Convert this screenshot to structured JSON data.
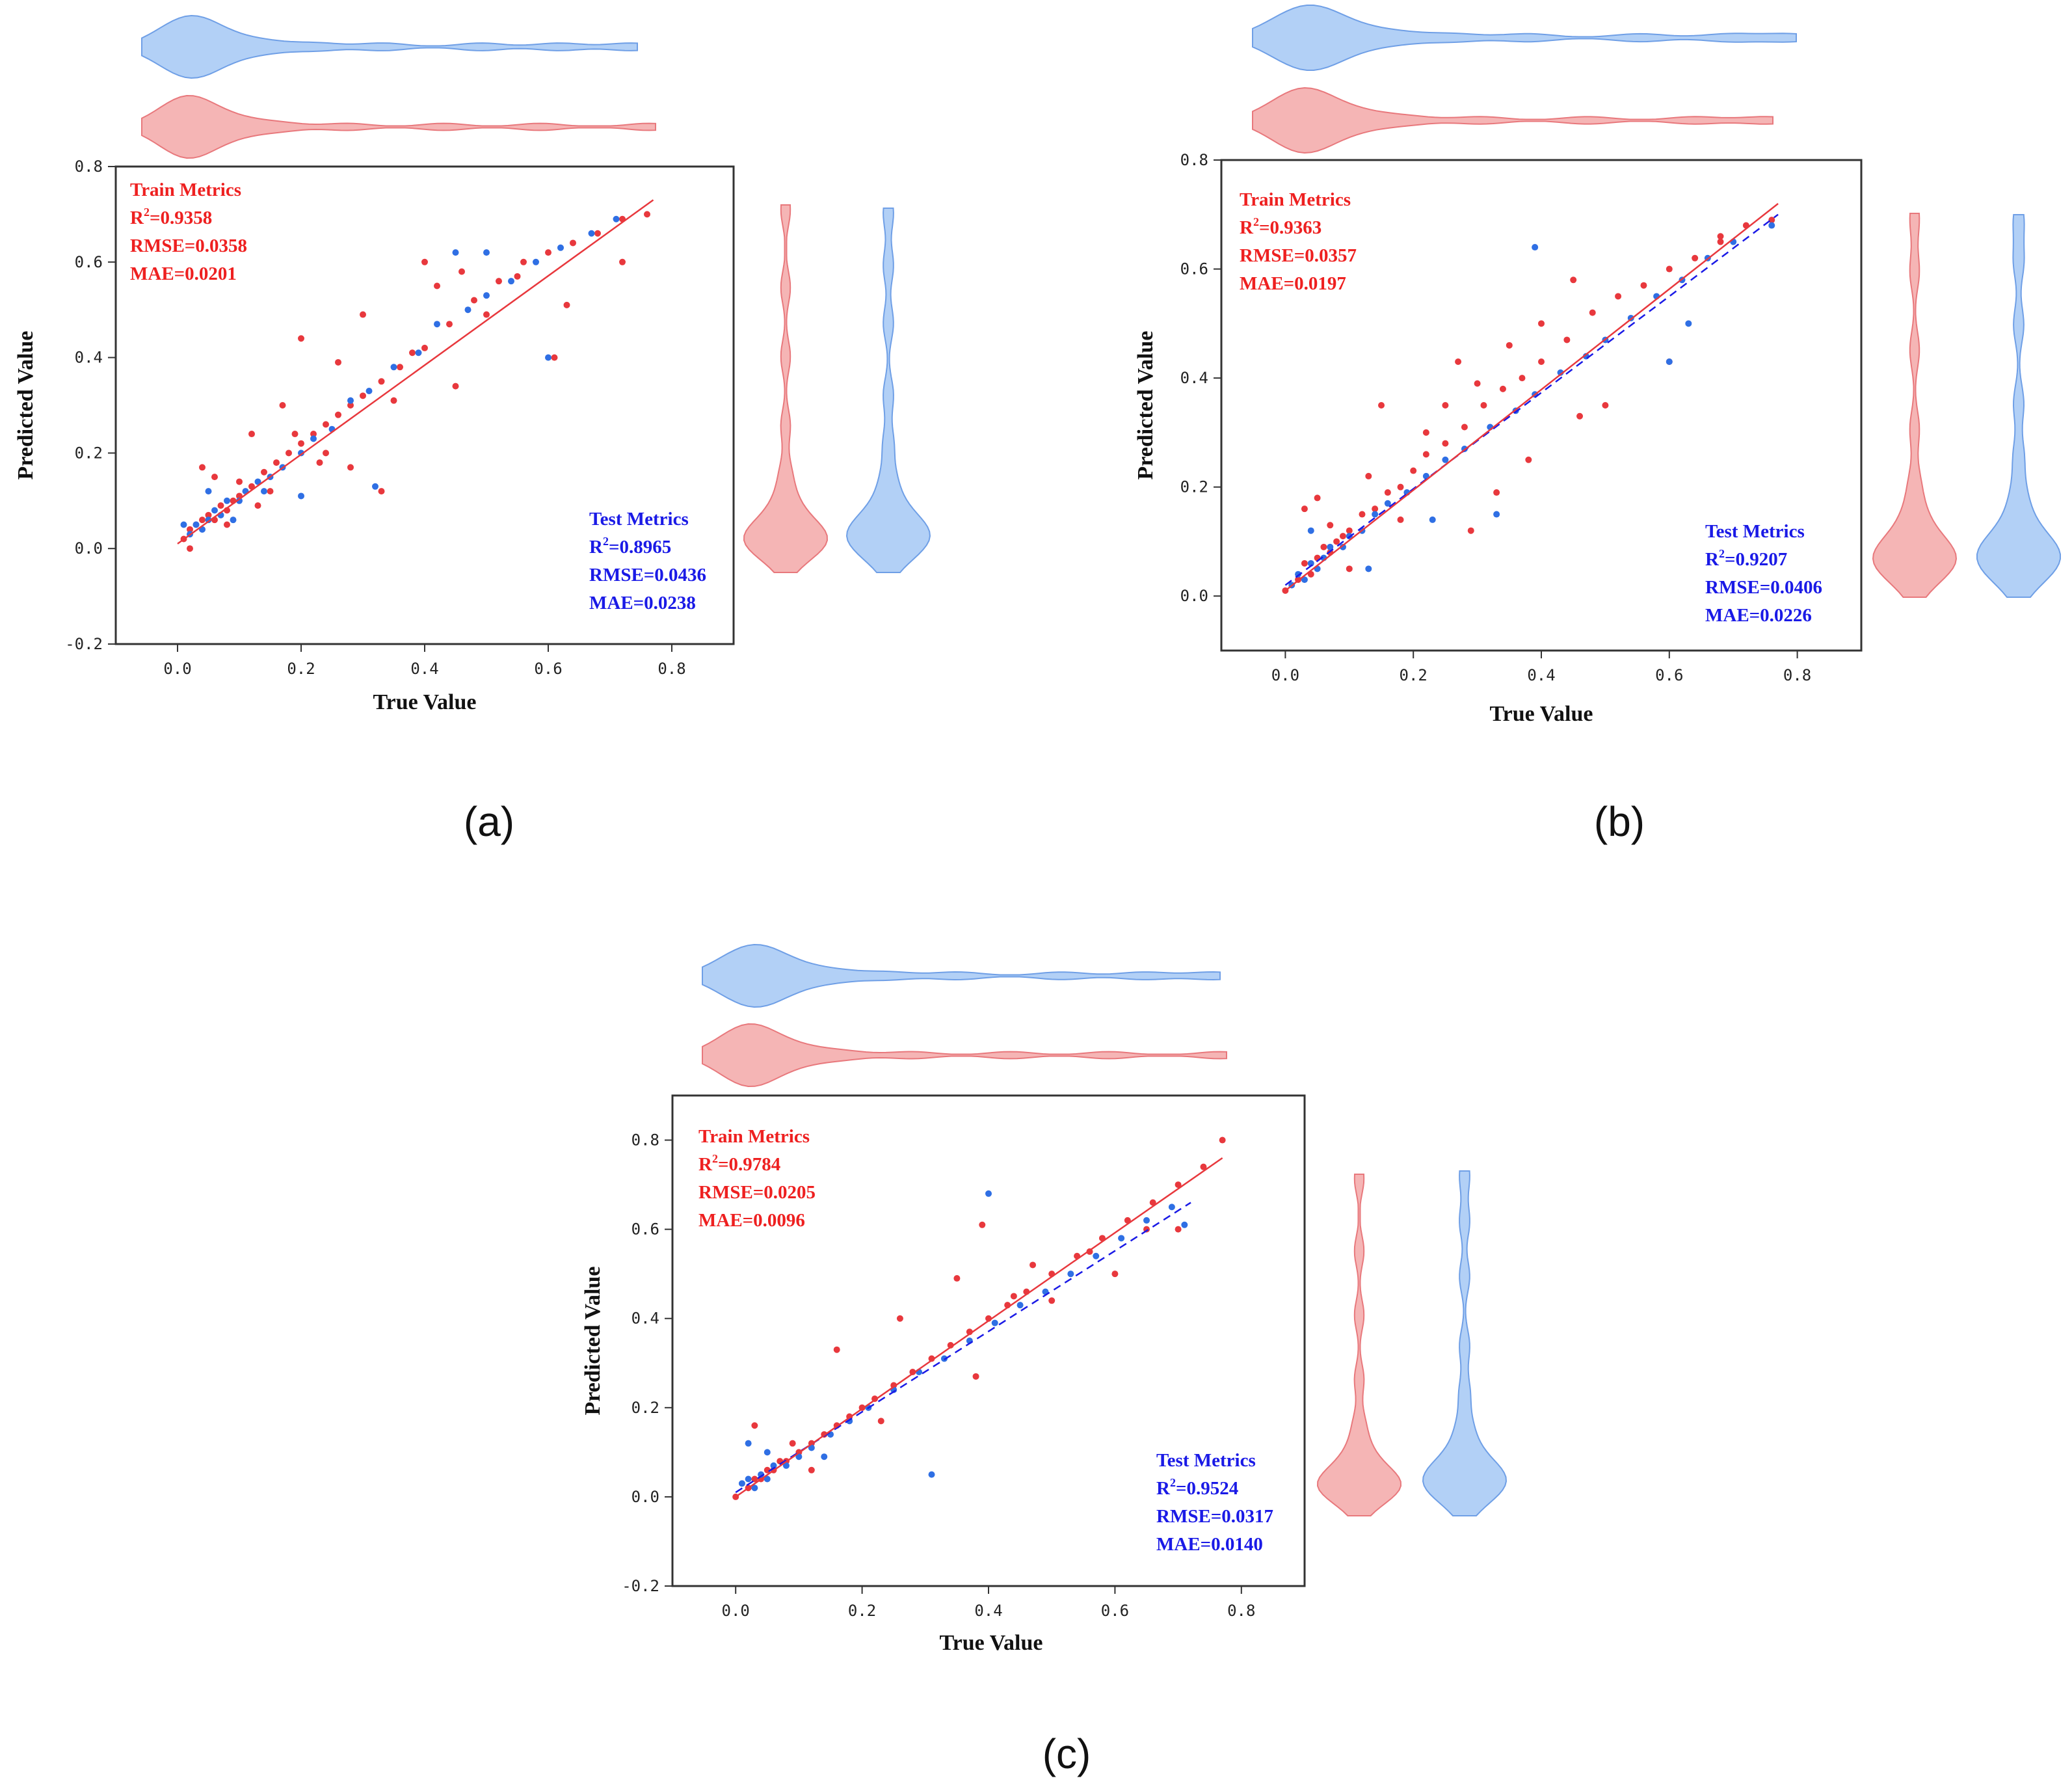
{
  "colors": {
    "train": "#e8383d",
    "test": "#2f6fe4",
    "train_violin_fill": "#f5b5b5",
    "train_violin_stroke": "#e8787c",
    "test_violin_fill": "#b2d0f6",
    "test_violin_stroke": "#6f9fe6",
    "train_text": "#ee2020",
    "test_text": "#1a1ae6"
  },
  "chart_data": [
    {
      "panel": "(a)",
      "type": "scatter",
      "xlabel": "True Value",
      "ylabel": "Predicted Value",
      "xlim": [
        -0.1,
        0.9
      ],
      "ylim": [
        -0.2,
        0.8
      ],
      "xticks": [
        "0.0",
        "0.2",
        "0.4",
        "0.6",
        "0.8"
      ],
      "yticks": [
        "-0.2",
        "0.0",
        "0.2",
        "0.4",
        "0.6",
        "0.8"
      ],
      "fit_line": {
        "x": [
          0.0,
          0.77
        ],
        "y": [
          0.01,
          0.73
        ]
      },
      "test_fit_line": null,
      "train_metrics": {
        "title": "Train Metrics",
        "r2": "=0.9358",
        "rmse": "RMSE=0.0358",
        "mae": "MAE=0.0201"
      },
      "test_metrics": {
        "title": "Test Metrics",
        "r2": "=0.8965",
        "rmse": "RMSE=0.0436",
        "mae": "MAE=0.0238"
      },
      "train_points": [
        [
          0.01,
          0.02
        ],
        [
          0.02,
          0.04
        ],
        [
          0.03,
          0.05
        ],
        [
          0.04,
          0.06
        ],
        [
          0.05,
          0.07
        ],
        [
          0.06,
          0.06
        ],
        [
          0.07,
          0.09
        ],
        [
          0.08,
          0.08
        ],
        [
          0.09,
          0.1
        ],
        [
          0.1,
          0.11
        ],
        [
          0.12,
          0.13
        ],
        [
          0.14,
          0.16
        ],
        [
          0.16,
          0.18
        ],
        [
          0.18,
          0.2
        ],
        [
          0.2,
          0.22
        ],
        [
          0.22,
          0.24
        ],
        [
          0.24,
          0.26
        ],
        [
          0.26,
          0.28
        ],
        [
          0.28,
          0.3
        ],
        [
          0.3,
          0.32
        ],
        [
          0.33,
          0.35
        ],
        [
          0.36,
          0.38
        ],
        [
          0.4,
          0.42
        ],
        [
          0.44,
          0.47
        ],
        [
          0.48,
          0.52
        ],
        [
          0.52,
          0.56
        ],
        [
          0.56,
          0.6
        ],
        [
          0.6,
          0.62
        ],
        [
          0.64,
          0.64
        ],
        [
          0.68,
          0.66
        ],
        [
          0.72,
          0.69
        ],
        [
          0.76,
          0.7
        ],
        [
          0.72,
          0.6
        ],
        [
          0.61,
          0.4
        ],
        [
          0.45,
          0.34
        ],
        [
          0.5,
          0.49
        ],
        [
          0.4,
          0.6
        ],
        [
          0.3,
          0.49
        ],
        [
          0.26,
          0.39
        ],
        [
          0.2,
          0.44
        ],
        [
          0.17,
          0.3
        ],
        [
          0.28,
          0.17
        ],
        [
          0.33,
          0.12
        ],
        [
          0.12,
          0.24
        ],
        [
          0.15,
          0.12
        ],
        [
          0.04,
          0.17
        ],
        [
          0.06,
          0.15
        ],
        [
          0.02,
          0.0
        ],
        [
          0.08,
          0.05
        ],
        [
          0.1,
          0.14
        ],
        [
          0.13,
          0.09
        ],
        [
          0.23,
          0.18
        ],
        [
          0.35,
          0.31
        ],
        [
          0.42,
          0.55
        ],
        [
          0.55,
          0.57
        ],
        [
          0.46,
          0.58
        ],
        [
          0.63,
          0.51
        ],
        [
          0.38,
          0.41
        ],
        [
          0.24,
          0.2
        ],
        [
          0.19,
          0.24
        ]
      ],
      "test_points": [
        [
          0.02,
          0.03
        ],
        [
          0.03,
          0.05
        ],
        [
          0.04,
          0.04
        ],
        [
          0.05,
          0.06
        ],
        [
          0.06,
          0.08
        ],
        [
          0.07,
          0.07
        ],
        [
          0.08,
          0.1
        ],
        [
          0.1,
          0.1
        ],
        [
          0.11,
          0.12
        ],
        [
          0.13,
          0.14
        ],
        [
          0.15,
          0.15
        ],
        [
          0.17,
          0.17
        ],
        [
          0.2,
          0.2
        ],
        [
          0.22,
          0.23
        ],
        [
          0.25,
          0.25
        ],
        [
          0.28,
          0.31
        ],
        [
          0.31,
          0.33
        ],
        [
          0.35,
          0.38
        ],
        [
          0.39,
          0.41
        ],
        [
          0.42,
          0.47
        ],
        [
          0.47,
          0.5
        ],
        [
          0.5,
          0.53
        ],
        [
          0.54,
          0.56
        ],
        [
          0.58,
          0.6
        ],
        [
          0.62,
          0.63
        ],
        [
          0.67,
          0.66
        ],
        [
          0.71,
          0.69
        ],
        [
          0.45,
          0.62
        ],
        [
          0.5,
          0.62
        ],
        [
          0.6,
          0.4
        ],
        [
          0.2,
          0.11
        ],
        [
          0.32,
          0.13
        ],
        [
          0.05,
          0.12
        ],
        [
          0.01,
          0.05
        ],
        [
          0.09,
          0.06
        ],
        [
          0.14,
          0.12
        ]
      ],
      "train_violin_values": [
        0.0,
        0.02,
        0.03,
        0.04,
        0.05,
        0.05,
        0.06,
        0.06,
        0.07,
        0.08,
        0.1,
        0.12,
        0.15,
        0.2,
        0.3,
        0.45,
        0.6,
        0.77
      ],
      "test_violin_values": [
        0.0,
        0.02,
        0.03,
        0.04,
        0.05,
        0.06,
        0.06,
        0.07,
        0.08,
        0.09,
        0.11,
        0.14,
        0.18,
        0.25,
        0.35,
        0.5,
        0.62,
        0.73
      ]
    },
    {
      "panel": "(b)",
      "type": "scatter",
      "xlabel": "True Value",
      "ylabel": "Predicted Value",
      "xlim": [
        -0.1,
        0.9
      ],
      "ylim": [
        -0.1,
        0.8
      ],
      "xticks": [
        "0.0",
        "0.2",
        "0.4",
        "0.6",
        "0.8"
      ],
      "yticks": [
        "0.0",
        "0.2",
        "0.4",
        "0.6",
        "0.8"
      ],
      "fit_line": {
        "x": [
          0.0,
          0.77
        ],
        "y": [
          0.01,
          0.72
        ]
      },
      "test_fit_line": {
        "x": [
          0.0,
          0.77
        ],
        "y": [
          0.02,
          0.7
        ]
      },
      "train_metrics": {
        "title": "Train Metrics",
        "r2": "=0.9363",
        "rmse": "RMSE=0.0357",
        "mae": "MAE=0.0197"
      },
      "test_metrics": {
        "title": "Test Metrics",
        "r2": "=0.9207",
        "rmse": "RMSE=0.0406",
        "mae": "MAE=0.0226"
      },
      "train_points": [
        [
          0.0,
          0.01
        ],
        [
          0.02,
          0.03
        ],
        [
          0.03,
          0.06
        ],
        [
          0.04,
          0.04
        ],
        [
          0.05,
          0.07
        ],
        [
          0.06,
          0.09
        ],
        [
          0.07,
          0.08
        ],
        [
          0.08,
          0.1
        ],
        [
          0.09,
          0.11
        ],
        [
          0.1,
          0.12
        ],
        [
          0.12,
          0.15
        ],
        [
          0.14,
          0.16
        ],
        [
          0.16,
          0.19
        ],
        [
          0.18,
          0.2
        ],
        [
          0.2,
          0.23
        ],
        [
          0.22,
          0.26
        ],
        [
          0.25,
          0.28
        ],
        [
          0.28,
          0.31
        ],
        [
          0.31,
          0.35
        ],
        [
          0.34,
          0.38
        ],
        [
          0.37,
          0.4
        ],
        [
          0.4,
          0.43
        ],
        [
          0.44,
          0.47
        ],
        [
          0.48,
          0.52
        ],
        [
          0.52,
          0.55
        ],
        [
          0.56,
          0.57
        ],
        [
          0.6,
          0.6
        ],
        [
          0.64,
          0.62
        ],
        [
          0.68,
          0.66
        ],
        [
          0.72,
          0.68
        ],
        [
          0.76,
          0.69
        ],
        [
          0.45,
          0.58
        ],
        [
          0.4,
          0.5
        ],
        [
          0.35,
          0.46
        ],
        [
          0.3,
          0.39
        ],
        [
          0.27,
          0.43
        ],
        [
          0.25,
          0.35
        ],
        [
          0.22,
          0.3
        ],
        [
          0.15,
          0.35
        ],
        [
          0.13,
          0.22
        ],
        [
          0.05,
          0.18
        ],
        [
          0.03,
          0.16
        ],
        [
          0.18,
          0.14
        ],
        [
          0.29,
          0.12
        ],
        [
          0.33,
          0.19
        ],
        [
          0.38,
          0.25
        ],
        [
          0.46,
          0.33
        ],
        [
          0.5,
          0.35
        ],
        [
          0.6,
          0.43
        ],
        [
          0.68,
          0.65
        ],
        [
          0.1,
          0.05
        ],
        [
          0.07,
          0.13
        ]
      ],
      "test_points": [
        [
          0.01,
          0.02
        ],
        [
          0.02,
          0.04
        ],
        [
          0.03,
          0.03
        ],
        [
          0.04,
          0.06
        ],
        [
          0.05,
          0.05
        ],
        [
          0.06,
          0.07
        ],
        [
          0.07,
          0.09
        ],
        [
          0.09,
          0.09
        ],
        [
          0.1,
          0.11
        ],
        [
          0.12,
          0.12
        ],
        [
          0.14,
          0.15
        ],
        [
          0.16,
          0.17
        ],
        [
          0.19,
          0.19
        ],
        [
          0.22,
          0.22
        ],
        [
          0.25,
          0.25
        ],
        [
          0.28,
          0.27
        ],
        [
          0.32,
          0.31
        ],
        [
          0.36,
          0.34
        ],
        [
          0.39,
          0.37
        ],
        [
          0.43,
          0.41
        ],
        [
          0.47,
          0.44
        ],
        [
          0.5,
          0.47
        ],
        [
          0.54,
          0.51
        ],
        [
          0.58,
          0.55
        ],
        [
          0.62,
          0.58
        ],
        [
          0.66,
          0.62
        ],
        [
          0.7,
          0.65
        ],
        [
          0.76,
          0.68
        ],
        [
          0.39,
          0.64
        ],
        [
          0.63,
          0.5
        ],
        [
          0.6,
          0.43
        ],
        [
          0.23,
          0.14
        ],
        [
          0.33,
          0.15
        ],
        [
          0.13,
          0.05
        ],
        [
          0.04,
          0.12
        ]
      ],
      "train_violin_values": [
        0.0,
        0.02,
        0.03,
        0.04,
        0.05,
        0.05,
        0.06,
        0.06,
        0.07,
        0.08,
        0.1,
        0.12,
        0.15,
        0.2,
        0.3,
        0.45,
        0.6,
        0.7
      ],
      "test_violin_values": [
        0.0,
        0.02,
        0.03,
        0.04,
        0.05,
        0.06,
        0.06,
        0.07,
        0.08,
        0.09,
        0.11,
        0.14,
        0.18,
        0.25,
        0.35,
        0.5,
        0.62,
        0.7
      ]
    },
    {
      "panel": "(c)",
      "type": "scatter",
      "xlabel": "True Value",
      "ylabel": "Predicted Value",
      "xlim": [
        -0.1,
        0.9
      ],
      "ylim": [
        -0.2,
        0.9
      ],
      "xticks": [
        "0.0",
        "0.2",
        "0.4",
        "0.6",
        "0.8"
      ],
      "yticks": [
        "-0.2",
        "0.0",
        "0.2",
        "0.4",
        "0.6",
        "0.8"
      ],
      "fit_line": {
        "x": [
          0.0,
          0.77
        ],
        "y": [
          0.0,
          0.76
        ]
      },
      "test_fit_line": {
        "x": [
          0.0,
          0.72
        ],
        "y": [
          0.01,
          0.66
        ]
      },
      "train_metrics": {
        "title": "Train Metrics",
        "r2": "=0.9784",
        "rmse": "RMSE=0.0205",
        "mae": "MAE=0.0096"
      },
      "test_metrics": {
        "title": "Test Metrics",
        "r2": "=0.9524",
        "rmse": "RMSE=0.0317",
        "mae": "MAE=0.0140"
      },
      "train_points": [
        [
          0.0,
          0.0
        ],
        [
          0.02,
          0.02
        ],
        [
          0.03,
          0.04
        ],
        [
          0.04,
          0.04
        ],
        [
          0.05,
          0.06
        ],
        [
          0.06,
          0.06
        ],
        [
          0.07,
          0.08
        ],
        [
          0.08,
          0.08
        ],
        [
          0.1,
          0.1
        ],
        [
          0.12,
          0.12
        ],
        [
          0.14,
          0.14
        ],
        [
          0.16,
          0.16
        ],
        [
          0.18,
          0.18
        ],
        [
          0.2,
          0.2
        ],
        [
          0.22,
          0.22
        ],
        [
          0.25,
          0.25
        ],
        [
          0.28,
          0.28
        ],
        [
          0.31,
          0.31
        ],
        [
          0.34,
          0.34
        ],
        [
          0.37,
          0.37
        ],
        [
          0.4,
          0.4
        ],
        [
          0.43,
          0.43
        ],
        [
          0.46,
          0.46
        ],
        [
          0.5,
          0.5
        ],
        [
          0.54,
          0.54
        ],
        [
          0.58,
          0.58
        ],
        [
          0.62,
          0.62
        ],
        [
          0.66,
          0.66
        ],
        [
          0.7,
          0.7
        ],
        [
          0.74,
          0.74
        ],
        [
          0.77,
          0.8
        ],
        [
          0.35,
          0.49
        ],
        [
          0.39,
          0.61
        ],
        [
          0.26,
          0.4
        ],
        [
          0.16,
          0.33
        ],
        [
          0.03,
          0.16
        ],
        [
          0.12,
          0.06
        ],
        [
          0.47,
          0.52
        ],
        [
          0.5,
          0.44
        ],
        [
          0.6,
          0.5
        ],
        [
          0.65,
          0.6
        ],
        [
          0.7,
          0.6
        ],
        [
          0.38,
          0.27
        ],
        [
          0.23,
          0.17
        ],
        [
          0.09,
          0.12
        ],
        [
          0.56,
          0.55
        ],
        [
          0.44,
          0.45
        ]
      ],
      "test_points": [
        [
          0.01,
          0.03
        ],
        [
          0.02,
          0.04
        ],
        [
          0.03,
          0.02
        ],
        [
          0.04,
          0.05
        ],
        [
          0.05,
          0.04
        ],
        [
          0.06,
          0.07
        ],
        [
          0.08,
          0.07
        ],
        [
          0.1,
          0.09
        ],
        [
          0.12,
          0.11
        ],
        [
          0.15,
          0.14
        ],
        [
          0.18,
          0.17
        ],
        [
          0.21,
          0.2
        ],
        [
          0.25,
          0.24
        ],
        [
          0.29,
          0.28
        ],
        [
          0.33,
          0.31
        ],
        [
          0.37,
          0.35
        ],
        [
          0.41,
          0.39
        ],
        [
          0.45,
          0.43
        ],
        [
          0.49,
          0.46
        ],
        [
          0.53,
          0.5
        ],
        [
          0.57,
          0.54
        ],
        [
          0.61,
          0.58
        ],
        [
          0.65,
          0.62
        ],
        [
          0.69,
          0.65
        ],
        [
          0.71,
          0.61
        ],
        [
          0.4,
          0.68
        ],
        [
          0.31,
          0.05
        ],
        [
          0.02,
          0.12
        ],
        [
          0.05,
          0.1
        ],
        [
          0.14,
          0.09
        ]
      ],
      "train_violin_values": [
        0.0,
        0.02,
        0.03,
        0.04,
        0.05,
        0.05,
        0.06,
        0.06,
        0.07,
        0.08,
        0.1,
        0.12,
        0.15,
        0.2,
        0.3,
        0.45,
        0.6,
        0.77
      ],
      "test_violin_values": [
        0.0,
        0.02,
        0.03,
        0.04,
        0.05,
        0.06,
        0.06,
        0.07,
        0.08,
        0.09,
        0.11,
        0.14,
        0.18,
        0.25,
        0.35,
        0.5,
        0.62,
        0.72
      ]
    }
  ]
}
